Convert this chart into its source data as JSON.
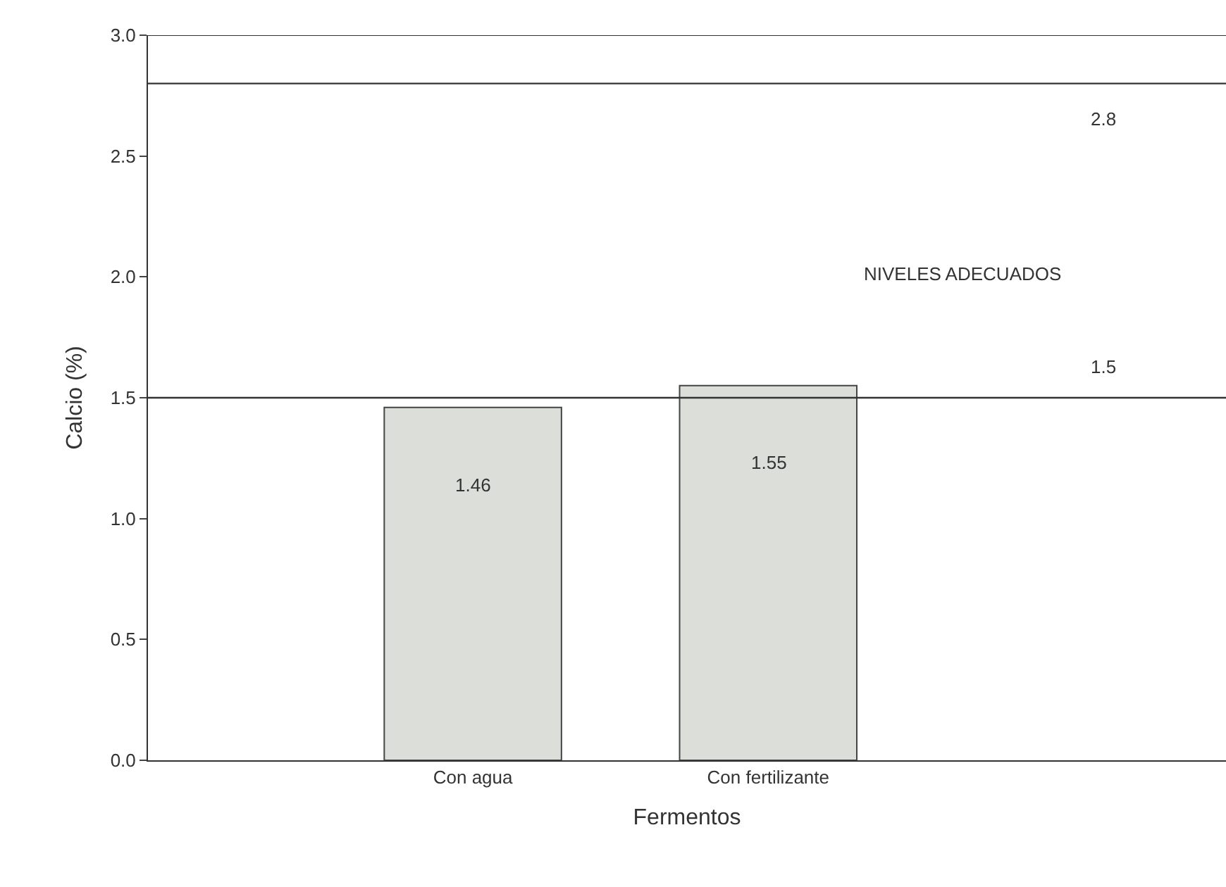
{
  "chart_data": {
    "type": "bar",
    "xlabel": "Fermentos",
    "ylabel": "Calcio (%)",
    "categories": [
      "Con agua",
      "Con fertilizante"
    ],
    "values": [
      1.46,
      1.55
    ],
    "color": "#dcdfd9",
    "ylim": [
      0,
      3.0
    ],
    "yticks": [
      {
        "value": 0,
        "label": "0.0"
      },
      {
        "value": 0.5,
        "label": "0.5"
      },
      {
        "value": 1.0,
        "label": "1.0"
      },
      {
        "value": 1.5,
        "label": "1.5"
      },
      {
        "value": 2.0,
        "label": "2.0"
      },
      {
        "value": 2.5,
        "label": "2.5"
      },
      {
        "value": 3.0,
        "label": "3.0"
      }
    ],
    "ref_lines": [
      {
        "axis": "y",
        "value": 2.8,
        "label": "2.8",
        "color": "#333333"
      },
      {
        "axis": "y",
        "value": 1.5,
        "label": "1.5",
        "color": "#333333"
      }
    ],
    "annotations": [
      "NIVELES ADECUADOS"
    ],
    "data_labels": true,
    "legend": false
  }
}
